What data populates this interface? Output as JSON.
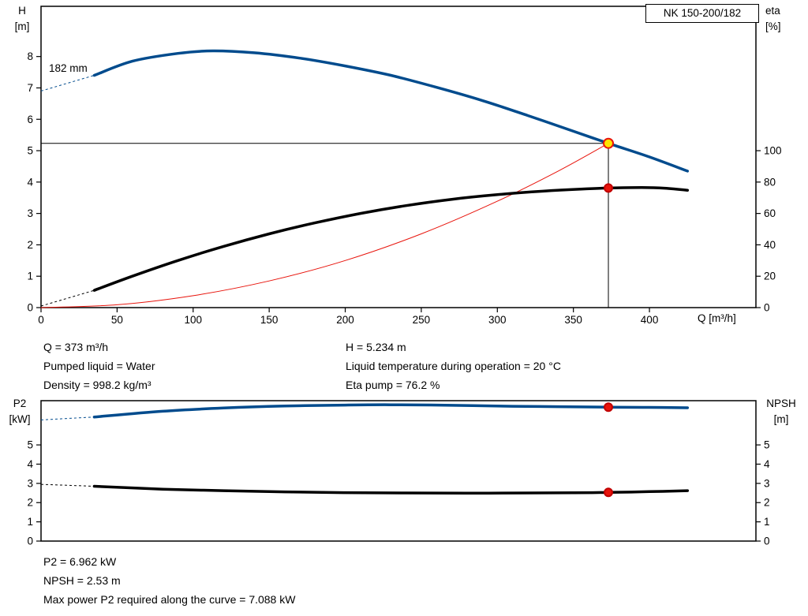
{
  "chart_data": [
    {
      "type": "line",
      "title": "NK 150-200/182",
      "x_axis": {
        "label": "Q [m³/h]",
        "min": 0,
        "max": 470,
        "ticks": [
          0,
          50,
          100,
          150,
          200,
          250,
          300,
          350,
          400
        ]
      },
      "y_left": {
        "label": "H",
        "unit": "[m]",
        "min": 0,
        "max": 9.6,
        "ticks": [
          0,
          1,
          2,
          3,
          4,
          5,
          6,
          7,
          8
        ]
      },
      "y_right": {
        "label": "eta",
        "unit": "[%]",
        "min": 0,
        "max": 192,
        "ticks": [
          0,
          20,
          40,
          60,
          80,
          100
        ]
      },
      "grid": false,
      "series": [
        {
          "name": "system-curve",
          "axis": "left",
          "color": "#e8140c",
          "width": 1,
          "points": [
            [
              0,
              0
            ],
            [
              50,
              0.09
            ],
            [
              100,
              0.38
            ],
            [
              150,
              0.85
            ],
            [
              200,
              1.5
            ],
            [
              250,
              2.35
            ],
            [
              300,
              3.39
            ],
            [
              340,
              4.35
            ],
            [
              373,
              5.234
            ]
          ]
        },
        {
          "name": "efficiency-curve",
          "axis": "right",
          "color": "#000000",
          "width": 3.5,
          "dash_lead": [
            [
              0,
              1
            ],
            [
              35,
              11
            ]
          ],
          "points": [
            [
              35,
              11
            ],
            [
              60,
              20
            ],
            [
              90,
              30
            ],
            [
              120,
              39
            ],
            [
              150,
              47
            ],
            [
              180,
              54
            ],
            [
              210,
              60
            ],
            [
              240,
              65
            ],
            [
              270,
              69
            ],
            [
              300,
              72
            ],
            [
              330,
              74.2
            ],
            [
              355,
              75.5
            ],
            [
              373,
              76.2
            ],
            [
              395,
              76.5
            ],
            [
              410,
              76.1
            ],
            [
              425,
              74.8
            ]
          ]
        },
        {
          "name": "head-curve",
          "axis": "left",
          "color": "#004b8d",
          "width": 3.5,
          "dash_lead": [
            [
              0,
              6.9
            ],
            [
              35,
              7.4
            ]
          ],
          "points": [
            [
              35,
              7.4
            ],
            [
              60,
              7.85
            ],
            [
              90,
              8.1
            ],
            [
              113,
              8.18
            ],
            [
              140,
              8.12
            ],
            [
              170,
              7.95
            ],
            [
              200,
              7.7
            ],
            [
              230,
              7.4
            ],
            [
              260,
              7.02
            ],
            [
              290,
              6.6
            ],
            [
              320,
              6.12
            ],
            [
              350,
              5.62
            ],
            [
              373,
              5.234
            ],
            [
              400,
              4.8
            ],
            [
              425,
              4.35
            ]
          ]
        }
      ],
      "crosshair": {
        "x": 373,
        "y_left": 5.234
      },
      "markers": [
        {
          "name": "eta-point-marker",
          "axis": "right",
          "x": 373,
          "y": 76.2,
          "r": 5,
          "fill": "#e8140c",
          "stroke": "#c00000"
        },
        {
          "name": "duty-point-marker",
          "axis": "left",
          "x": 373,
          "y": 5.234,
          "r": 6,
          "fill": "#ffe500",
          "stroke": "#e8140c"
        }
      ]
    },
    {
      "type": "line",
      "title": "",
      "x_axis": {
        "label": "",
        "min": 0,
        "max": 470,
        "ticks": []
      },
      "y_left": {
        "label": "P2",
        "unit": "[kW]",
        "min": 0,
        "max": 7.3,
        "ticks": [
          0,
          1,
          2,
          3,
          4,
          5
        ]
      },
      "y_right": {
        "label": "NPSH",
        "unit": "[m]",
        "min": 0,
        "max": 7.3,
        "ticks": [
          0,
          1,
          2,
          3,
          4,
          5
        ]
      },
      "grid": false,
      "series": [
        {
          "name": "npsh-curve",
          "axis": "right",
          "color": "#000000",
          "width": 3.5,
          "dash_lead": [
            [
              0,
              2.95
            ],
            [
              35,
              2.85
            ]
          ],
          "points": [
            [
              35,
              2.85
            ],
            [
              80,
              2.7
            ],
            [
              120,
              2.62
            ],
            [
              160,
              2.56
            ],
            [
              200,
              2.52
            ],
            [
              240,
              2.5
            ],
            [
              280,
              2.49
            ],
            [
              320,
              2.5
            ],
            [
              350,
              2.51
            ],
            [
              373,
              2.53
            ],
            [
              400,
              2.57
            ],
            [
              425,
              2.62
            ]
          ]
        },
        {
          "name": "p2-curve",
          "axis": "left",
          "color": "#004b8d",
          "width": 3.5,
          "dash_lead": [
            [
              0,
              6.3
            ],
            [
              35,
              6.45
            ]
          ],
          "points": [
            [
              35,
              6.45
            ],
            [
              80,
              6.75
            ],
            [
              120,
              6.92
            ],
            [
              160,
              7.02
            ],
            [
              200,
              7.07
            ],
            [
              230,
              7.088
            ],
            [
              270,
              7.06
            ],
            [
              310,
              7.01
            ],
            [
              340,
              6.99
            ],
            [
              373,
              6.962
            ],
            [
              400,
              6.95
            ],
            [
              425,
              6.93
            ]
          ]
        }
      ],
      "markers": [
        {
          "name": "p2-point-marker",
          "axis": "left",
          "x": 373,
          "y": 6.962,
          "r": 5,
          "fill": "#e8140c",
          "stroke": "#c00000"
        },
        {
          "name": "npsh-point-marker",
          "axis": "right",
          "x": 373,
          "y": 2.53,
          "r": 5,
          "fill": "#e8140c",
          "stroke": "#c00000"
        }
      ]
    }
  ],
  "annotations": {
    "impeller_diameter": "182 mm"
  },
  "info_top": {
    "left": [
      "Q = 373 m³/h",
      "Pumped liquid = Water",
      "Density = 998.2 kg/m³"
    ],
    "right": [
      "H = 5.234 m",
      "Liquid temperature during operation = 20 °C",
      "Eta pump = 76.2 %"
    ]
  },
  "info_bottom": [
    "P2 = 6.962 kW",
    "NPSH = 2.53 m",
    "Max power P2 required along the curve = 7.088 kW"
  ]
}
